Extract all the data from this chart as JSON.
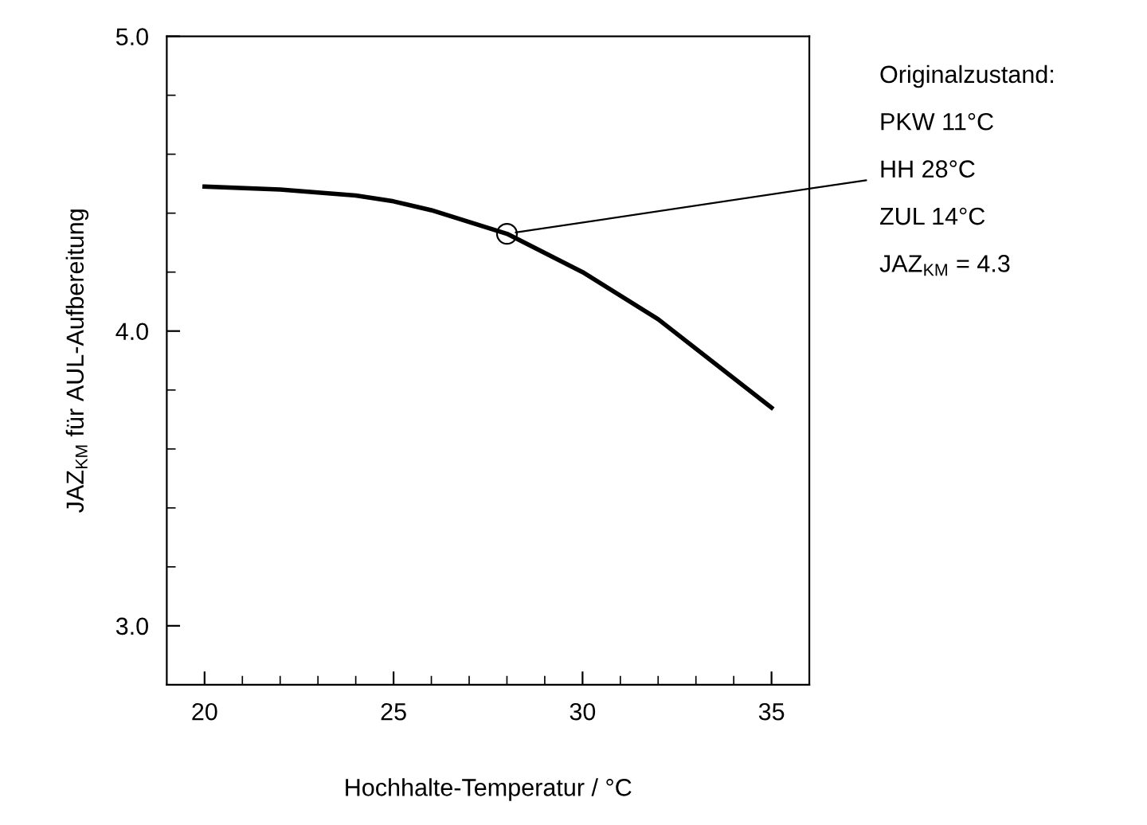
{
  "chart_data": {
    "type": "line",
    "xlabel": "Hochhalte-Temperatur / °C",
    "ylabel": "JAZ$_{KM}$ für AUL-Aufbereitung",
    "x": [
      20,
      22,
      24,
      25,
      26,
      28,
      30,
      32,
      35
    ],
    "series": [
      {
        "color": "#000000",
        "values": [
          4.49,
          4.48,
          4.46,
          4.44,
          4.41,
          4.33,
          4.2,
          4.04,
          3.74
        ]
      }
    ],
    "xlim": [
      19,
      36
    ],
    "xticks": [
      20,
      {
        "value": 21,
        "label": null
      },
      {
        "value": 22,
        "label": null
      },
      {
        "value": 23,
        "label": null
      },
      {
        "value": 24,
        "label": null
      },
      25,
      {
        "value": 26,
        "label": null
      },
      {
        "value": 27,
        "label": null
      },
      {
        "value": 28,
        "label": null
      },
      {
        "value": 29,
        "label": null
      },
      30,
      {
        "value": 31,
        "label": null
      },
      {
        "value": 32,
        "label": null
      },
      {
        "value": 33,
        "label": null
      },
      {
        "value": 34,
        "label": null
      },
      35
    ],
    "ylim": [
      2.8,
      5.0
    ],
    "yticks": [
      {
        "value": 3.0,
        "label": "3.0"
      },
      {
        "value": 3.2,
        "label": null
      },
      {
        "value": 3.4,
        "label": null
      },
      {
        "value": 3.6,
        "label": null
      },
      {
        "value": 3.8,
        "label": null
      },
      {
        "value": 4.0,
        "label": "4.0"
      },
      {
        "value": 4.2,
        "label": null
      },
      {
        "value": 4.4,
        "label": null
      },
      {
        "value": 4.6,
        "label": null
      },
      {
        "value": 4.8,
        "label": null
      },
      {
        "value": 5.0,
        "label": "5.0"
      }
    ],
    "annotations": [
      "Originalzustand:",
      "PKW 11°C",
      {
        "text": "HH 28°C",
        "x": 28,
        "y": 4.33
      },
      "ZUL 14°C",
      "JAZ$_{KM}$ = 4.3"
    ],
    "grid": false,
    "marker": "none",
    "line_style": "solid"
  }
}
